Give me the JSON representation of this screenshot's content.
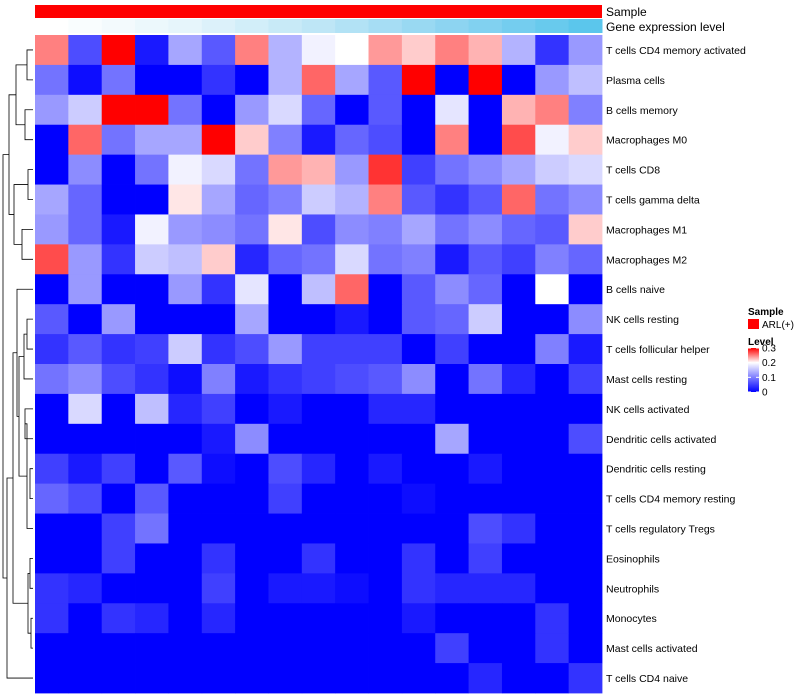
{
  "chart_data": {
    "type": "heatmap",
    "annotations": [
      {
        "name": "Sample",
        "kind": "categorical",
        "color": "#FF0000"
      },
      {
        "name": "Gene expression level",
        "kind": "gradient",
        "colors": [
          "#FFFFFF",
          "#E6F5FB",
          "#BEE6F6",
          "#8DD4F1",
          "#5BC6EC"
        ]
      }
    ],
    "legend": {
      "position": "right",
      "sample_title": "Sample",
      "sample_entry": {
        "label": "ARL(+)",
        "color": "#FF0000"
      },
      "level_title": "Level",
      "level_ticks": [
        0.3,
        0.2,
        0.1,
        0
      ],
      "level_range": [
        0,
        0.3
      ]
    },
    "color_scale": {
      "low": "#0000FF",
      "mid": "#FFFFFF",
      "high": "#FF0000",
      "mid_value": 0.2,
      "min": 0,
      "max": 0.3
    },
    "rows": [
      {
        "label": "T cells CD4 memory activated",
        "values": [
          0.25,
          0.06,
          0.3,
          0.02,
          0.13,
          0.07,
          0.25,
          0.14,
          0.19,
          0.2,
          0.24,
          0.22,
          0.25,
          0.23,
          0.14,
          0.04,
          0.12
        ]
      },
      {
        "label": "Plasma cells",
        "values": [
          0.09,
          0.01,
          0.09,
          0.0,
          0.0,
          0.04,
          0.0,
          0.14,
          0.26,
          0.13,
          0.07,
          0.3,
          0.0,
          0.3,
          0.0,
          0.12,
          0.15
        ]
      },
      {
        "label": "B cells memory",
        "values": [
          0.12,
          0.16,
          0.3,
          0.3,
          0.09,
          0.0,
          0.12,
          0.17,
          0.08,
          0.0,
          0.07,
          0.0,
          0.18,
          0.0,
          0.23,
          0.25,
          0.1
        ]
      },
      {
        "label": "Macrophages M0",
        "values": [
          0.0,
          0.26,
          0.09,
          0.13,
          0.13,
          0.3,
          0.22,
          0.1,
          0.02,
          0.08,
          0.06,
          0.0,
          0.25,
          0.0,
          0.27,
          0.19,
          0.22
        ]
      },
      {
        "label": "T cells CD8",
        "values": [
          0.0,
          0.11,
          0.0,
          0.09,
          0.19,
          0.17,
          0.09,
          0.24,
          0.23,
          0.12,
          0.28,
          0.05,
          0.09,
          0.11,
          0.13,
          0.16,
          0.17
        ]
      },
      {
        "label": "T cells gamma delta",
        "values": [
          0.13,
          0.08,
          0.0,
          0.0,
          0.21,
          0.13,
          0.08,
          0.1,
          0.16,
          0.14,
          0.25,
          0.07,
          0.04,
          0.07,
          0.26,
          0.09,
          0.11
        ]
      },
      {
        "label": "Macrophages M1",
        "values": [
          0.12,
          0.08,
          0.02,
          0.19,
          0.12,
          0.11,
          0.09,
          0.21,
          0.06,
          0.11,
          0.1,
          0.13,
          0.09,
          0.11,
          0.08,
          0.07,
          0.22
        ]
      },
      {
        "label": "Macrophages M2",
        "values": [
          0.27,
          0.12,
          0.04,
          0.16,
          0.15,
          0.22,
          0.03,
          0.08,
          0.09,
          0.17,
          0.09,
          0.1,
          0.02,
          0.07,
          0.05,
          0.1,
          0.08
        ]
      },
      {
        "label": "B cells naive",
        "values": [
          0.0,
          0.12,
          0.0,
          0.0,
          0.12,
          0.04,
          0.18,
          0.0,
          0.15,
          0.26,
          0.0,
          0.07,
          0.11,
          0.08,
          0.0,
          0.2,
          0.0
        ]
      },
      {
        "label": "NK cells resting",
        "values": [
          0.07,
          0.0,
          0.12,
          0.0,
          0.0,
          0.0,
          0.13,
          0.0,
          0.0,
          0.02,
          0.0,
          0.07,
          0.08,
          0.16,
          0.0,
          0.0,
          0.11
        ]
      },
      {
        "label": "T cells follicular helper",
        "values": [
          0.04,
          0.07,
          0.04,
          0.05,
          0.16,
          0.04,
          0.06,
          0.12,
          0.05,
          0.05,
          0.05,
          0.0,
          0.05,
          0.0,
          0.0,
          0.1,
          0.02
        ]
      },
      {
        "label": "Mast cells resting",
        "values": [
          0.09,
          0.11,
          0.06,
          0.04,
          0.01,
          0.1,
          0.02,
          0.04,
          0.05,
          0.06,
          0.07,
          0.11,
          0.0,
          0.09,
          0.03,
          0.0,
          0.05
        ]
      },
      {
        "label": "NK cells activated",
        "values": [
          0.0,
          0.17,
          0.0,
          0.15,
          0.03,
          0.05,
          0.0,
          0.02,
          0.0,
          0.0,
          0.03,
          0.03,
          0.0,
          0.0,
          0.0,
          0.0,
          0.0
        ]
      },
      {
        "label": "Dendritic cells activated",
        "values": [
          0.0,
          0.0,
          0.0,
          0.0,
          0.0,
          0.02,
          0.11,
          0.0,
          0.0,
          0.0,
          0.0,
          0.0,
          0.13,
          0.0,
          0.0,
          0.0,
          0.06
        ]
      },
      {
        "label": "Dendritic cells resting",
        "values": [
          0.05,
          0.02,
          0.05,
          0.0,
          0.07,
          0.01,
          0.0,
          0.06,
          0.03,
          0.0,
          0.02,
          0.0,
          0.0,
          0.02,
          0.0,
          0.0,
          0.0
        ]
      },
      {
        "label": "T cells CD4 memory resting",
        "values": [
          0.08,
          0.06,
          0.0,
          0.07,
          0.0,
          0.0,
          0.0,
          0.05,
          0.0,
          0.0,
          0.0,
          0.01,
          0.0,
          0.0,
          0.0,
          0.0,
          0.0
        ]
      },
      {
        "label": "T cells regulatory  Tregs",
        "values": [
          0.0,
          0.0,
          0.05,
          0.09,
          0.0,
          0.0,
          0.0,
          0.0,
          0.0,
          0.0,
          0.0,
          0.0,
          0.0,
          0.06,
          0.04,
          0.0,
          0.0
        ]
      },
      {
        "label": "Eosinophils",
        "values": [
          0.0,
          0.0,
          0.05,
          0.0,
          0.0,
          0.04,
          0.0,
          0.0,
          0.04,
          0.0,
          0.0,
          0.04,
          0.0,
          0.05,
          0.0,
          0.0,
          0.0
        ]
      },
      {
        "label": "Neutrophils",
        "values": [
          0.04,
          0.03,
          0.0,
          0.0,
          0.0,
          0.05,
          0.0,
          0.02,
          0.02,
          0.01,
          0.0,
          0.04,
          0.03,
          0.03,
          0.03,
          0.0,
          0.0
        ]
      },
      {
        "label": "Monocytes",
        "values": [
          0.04,
          0.0,
          0.04,
          0.03,
          0.0,
          0.03,
          0.0,
          0.0,
          0.0,
          0.0,
          0.0,
          0.02,
          0.0,
          0.0,
          0.0,
          0.04,
          0.0
        ]
      },
      {
        "label": "Mast cells activated",
        "values": [
          0.0,
          0.0,
          0.0,
          0.0,
          0.0,
          0.0,
          0.0,
          0.0,
          0.0,
          0.0,
          0.0,
          0.0,
          0.05,
          0.0,
          0.0,
          0.04,
          0.0
        ]
      },
      {
        "label": "T cells CD4 naive",
        "values": [
          0.0,
          0.0,
          0.0,
          0.0,
          0.0,
          0.0,
          0.0,
          0.0,
          0.0,
          0.0,
          0.0,
          0.0,
          0.0,
          0.03,
          0.0,
          0.0,
          0.04
        ]
      }
    ]
  }
}
